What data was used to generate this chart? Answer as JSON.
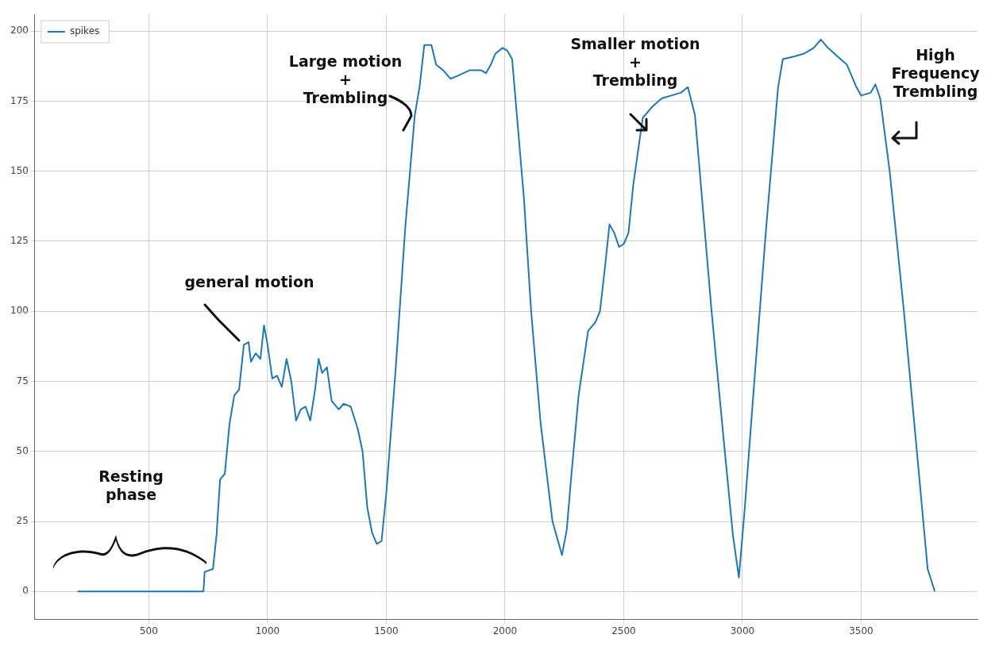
{
  "chart_data": {
    "type": "line",
    "xlim": [
      20,
      3990
    ],
    "ylim": [
      -10,
      206
    ],
    "xticks": [
      500,
      1000,
      1500,
      2000,
      2500,
      3000,
      3500
    ],
    "yticks": [
      0,
      25,
      50,
      75,
      100,
      125,
      150,
      175,
      200
    ],
    "grid": true,
    "legend": "top left",
    "marker": "none",
    "line_style": "solid",
    "annotations": [
      "Resting\nphase",
      {
        "text": "general motion",
        "x": 900,
        "y": 88
      },
      "Large motion\n+\nTrembling",
      "Smaller motion\n+\nTrembling",
      "High\nFrequency\nTrembling"
    ],
    "series": [
      {
        "name": "spikes",
        "color": "#1f77b4",
        "x": [
          200,
          730,
          735,
          770,
          785,
          800,
          820,
          840,
          860,
          880,
          900,
          920,
          930,
          950,
          970,
          985,
          1000,
          1020,
          1040,
          1060,
          1080,
          1100,
          1120,
          1140,
          1160,
          1180,
          1200,
          1215,
          1230,
          1250,
          1270,
          1300,
          1320,
          1350,
          1380,
          1400,
          1420,
          1440,
          1460,
          1480,
          1500,
          1540,
          1580,
          1620,
          1640,
          1660,
          1690,
          1710,
          1740,
          1770,
          1800,
          1850,
          1900,
          1920,
          1940,
          1960,
          1990,
          2010,
          2030,
          2050,
          2080,
          2110,
          2150,
          2200,
          2240,
          2260,
          2280,
          2310,
          2350,
          2380,
          2400,
          2420,
          2440,
          2460,
          2480,
          2500,
          2520,
          2540,
          2580,
          2620,
          2660,
          2700,
          2740,
          2770,
          2800,
          2830,
          2870,
          2920,
          2960,
          2985,
          3010,
          3050,
          3100,
          3150,
          3170,
          3220,
          3260,
          3300,
          3330,
          3360,
          3400,
          3440,
          3480,
          3500,
          3540,
          3560,
          3580,
          3620,
          3680,
          3740,
          3780,
          3810
        ],
        "values": [
          0,
          0,
          7,
          8,
          20,
          40,
          42,
          60,
          70,
          72,
          88,
          89,
          82,
          85,
          83,
          95,
          88,
          76,
          77,
          73,
          83,
          75,
          61,
          65,
          66,
          61,
          72,
          83,
          78,
          80,
          68,
          65,
          67,
          66,
          58,
          50,
          30,
          21,
          17,
          18,
          35,
          80,
          130,
          170,
          180,
          195,
          195,
          188,
          186,
          183,
          184,
          186,
          186,
          185,
          188,
          192,
          194,
          193,
          190,
          170,
          140,
          100,
          60,
          25,
          13,
          22,
          42,
          70,
          93,
          96,
          100,
          115,
          131,
          128,
          123,
          124,
          128,
          145,
          169,
          173,
          176,
          177,
          178,
          180,
          170,
          140,
          100,
          55,
          20,
          5,
          30,
          75,
          130,
          180,
          190,
          191,
          192,
          194,
          197,
          194,
          191,
          188,
          180,
          177,
          178,
          181,
          176,
          150,
          100,
          45,
          8,
          0
        ]
      }
    ]
  }
}
